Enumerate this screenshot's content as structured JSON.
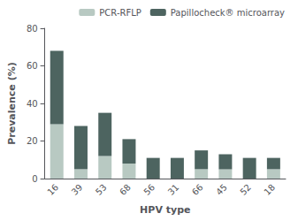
{
  "chart_data": {
    "type": "bar",
    "categories": [
      "16",
      "39",
      "53",
      "68",
      "56",
      "31",
      "66",
      "45",
      "52",
      "18"
    ],
    "series": [
      {
        "name": "PCR-RFLP",
        "color": "#b8c9c2",
        "values": [
          29,
          5,
          12,
          8,
          0,
          0,
          5,
          5,
          0,
          5
        ]
      },
      {
        "name": "Papillocheck® microarray",
        "color": "#4d6460",
        "values": [
          39,
          23,
          23,
          13,
          11,
          11,
          10,
          8,
          11,
          6
        ]
      }
    ],
    "stacked": true,
    "xlabel": "HPV type",
    "ylabel": "Prevalence (%)",
    "ylim": [
      0,
      80
    ],
    "yticks": [
      0,
      20,
      40,
      60,
      80
    ],
    "grid": false,
    "legend": "upper right"
  }
}
